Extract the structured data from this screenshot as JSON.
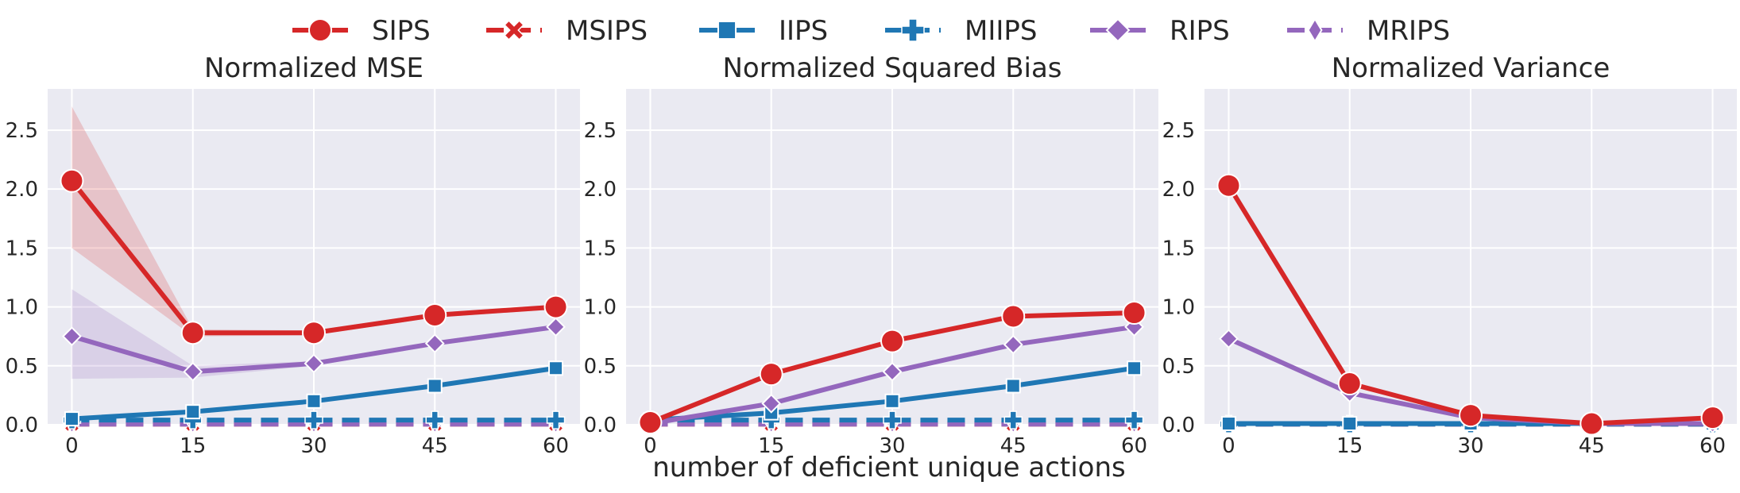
{
  "legend": {
    "placement": "top-center",
    "entries": [
      {
        "label": "SIPS",
        "color": "#d62728",
        "marker": "circle",
        "dashed": false
      },
      {
        "label": "MSIPS",
        "color": "#d62728",
        "marker": "x",
        "dashed": true
      },
      {
        "label": "IIPS",
        "color": "#1f77b4",
        "marker": "square",
        "dashed": false
      },
      {
        "label": "MIIPS",
        "color": "#1f77b4",
        "marker": "plus",
        "dashed": true
      },
      {
        "label": "RIPS",
        "color": "#9467bd",
        "marker": "diamond",
        "dashed": false
      },
      {
        "label": "MRIPS",
        "color": "#9467bd",
        "marker": "thin-diamond",
        "dashed": true
      }
    ]
  },
  "shared_xlabel": "number of deficient unique actions",
  "chart_data": [
    {
      "type": "line",
      "title": "Normalized MSE",
      "x": [
        0,
        15,
        30,
        45,
        60
      ],
      "xticks": [
        "0",
        "15",
        "30",
        "45",
        "60"
      ],
      "yticks": [
        "0.0",
        "0.5",
        "1.0",
        "1.5",
        "2.0",
        "2.5"
      ],
      "ylim": [
        0,
        2.85
      ],
      "grid": true,
      "series": [
        {
          "name": "SIPS",
          "values": [
            2.07,
            0.78,
            0.78,
            0.93,
            1.0
          ],
          "band_low": [
            1.5,
            0.75,
            0.76,
            0.91,
            0.98
          ],
          "band_high": [
            2.7,
            0.81,
            0.8,
            0.95,
            1.02
          ]
        },
        {
          "name": "MSIPS",
          "values": [
            0.005,
            0.005,
            0.005,
            0.005,
            0.005
          ]
        },
        {
          "name": "IIPS",
          "values": [
            0.05,
            0.11,
            0.2,
            0.33,
            0.48
          ]
        },
        {
          "name": "MIIPS",
          "values": [
            0.04,
            0.04,
            0.04,
            0.04,
            0.04
          ]
        },
        {
          "name": "RIPS",
          "values": [
            0.75,
            0.45,
            0.52,
            0.69,
            0.83
          ],
          "band_low": [
            0.39,
            0.4,
            0.5,
            0.67,
            0.81
          ],
          "band_high": [
            1.15,
            0.5,
            0.54,
            0.71,
            0.85
          ]
        },
        {
          "name": "MRIPS",
          "values": [
            0.005,
            0.005,
            0.005,
            0.005,
            0.005
          ]
        }
      ]
    },
    {
      "type": "line",
      "title": "Normalized Squared Bias",
      "x": [
        0,
        15,
        30,
        45,
        60
      ],
      "xticks": [
        "0",
        "15",
        "30",
        "45",
        "60"
      ],
      "yticks": [
        "0.0",
        "0.5",
        "1.0",
        "1.5",
        "2.0",
        "2.5"
      ],
      "ylim": [
        0,
        2.85
      ],
      "grid": true,
      "series": [
        {
          "name": "SIPS",
          "values": [
            0.02,
            0.43,
            0.71,
            0.92,
            0.95
          ]
        },
        {
          "name": "MSIPS",
          "values": [
            0.005,
            0.005,
            0.005,
            0.005,
            0.005
          ]
        },
        {
          "name": "IIPS",
          "values": [
            0.04,
            0.1,
            0.2,
            0.33,
            0.48
          ]
        },
        {
          "name": "MIIPS",
          "values": [
            0.04,
            0.04,
            0.04,
            0.04,
            0.04
          ]
        },
        {
          "name": "RIPS",
          "values": [
            0.01,
            0.18,
            0.45,
            0.68,
            0.83
          ]
        },
        {
          "name": "MRIPS",
          "values": [
            0.005,
            0.005,
            0.005,
            0.005,
            0.005
          ]
        }
      ]
    },
    {
      "type": "line",
      "title": "Normalized Variance",
      "x": [
        0,
        15,
        30,
        45,
        60
      ],
      "xticks": [
        "0",
        "15",
        "30",
        "45",
        "60"
      ],
      "yticks": [
        "0.0",
        "0.5",
        "1.0",
        "1.5",
        "2.0",
        "2.5"
      ],
      "ylim": [
        0,
        2.85
      ],
      "grid": true,
      "series": [
        {
          "name": "SIPS",
          "values": [
            2.03,
            0.35,
            0.08,
            0.01,
            0.06
          ]
        },
        {
          "name": "MSIPS",
          "values": [
            0.005,
            0.005,
            0.005,
            0.005,
            0.005
          ]
        },
        {
          "name": "IIPS",
          "values": [
            0.01,
            0.01,
            0.01,
            0.01,
            0.01
          ]
        },
        {
          "name": "MIIPS",
          "values": [
            0.005,
            0.005,
            0.005,
            0.005,
            0.005
          ]
        },
        {
          "name": "RIPS",
          "values": [
            0.73,
            0.27,
            0.06,
            0.01,
            0.01
          ]
        },
        {
          "name": "MRIPS",
          "values": [
            0.005,
            0.005,
            0.005,
            0.005,
            0.005
          ]
        }
      ]
    }
  ]
}
